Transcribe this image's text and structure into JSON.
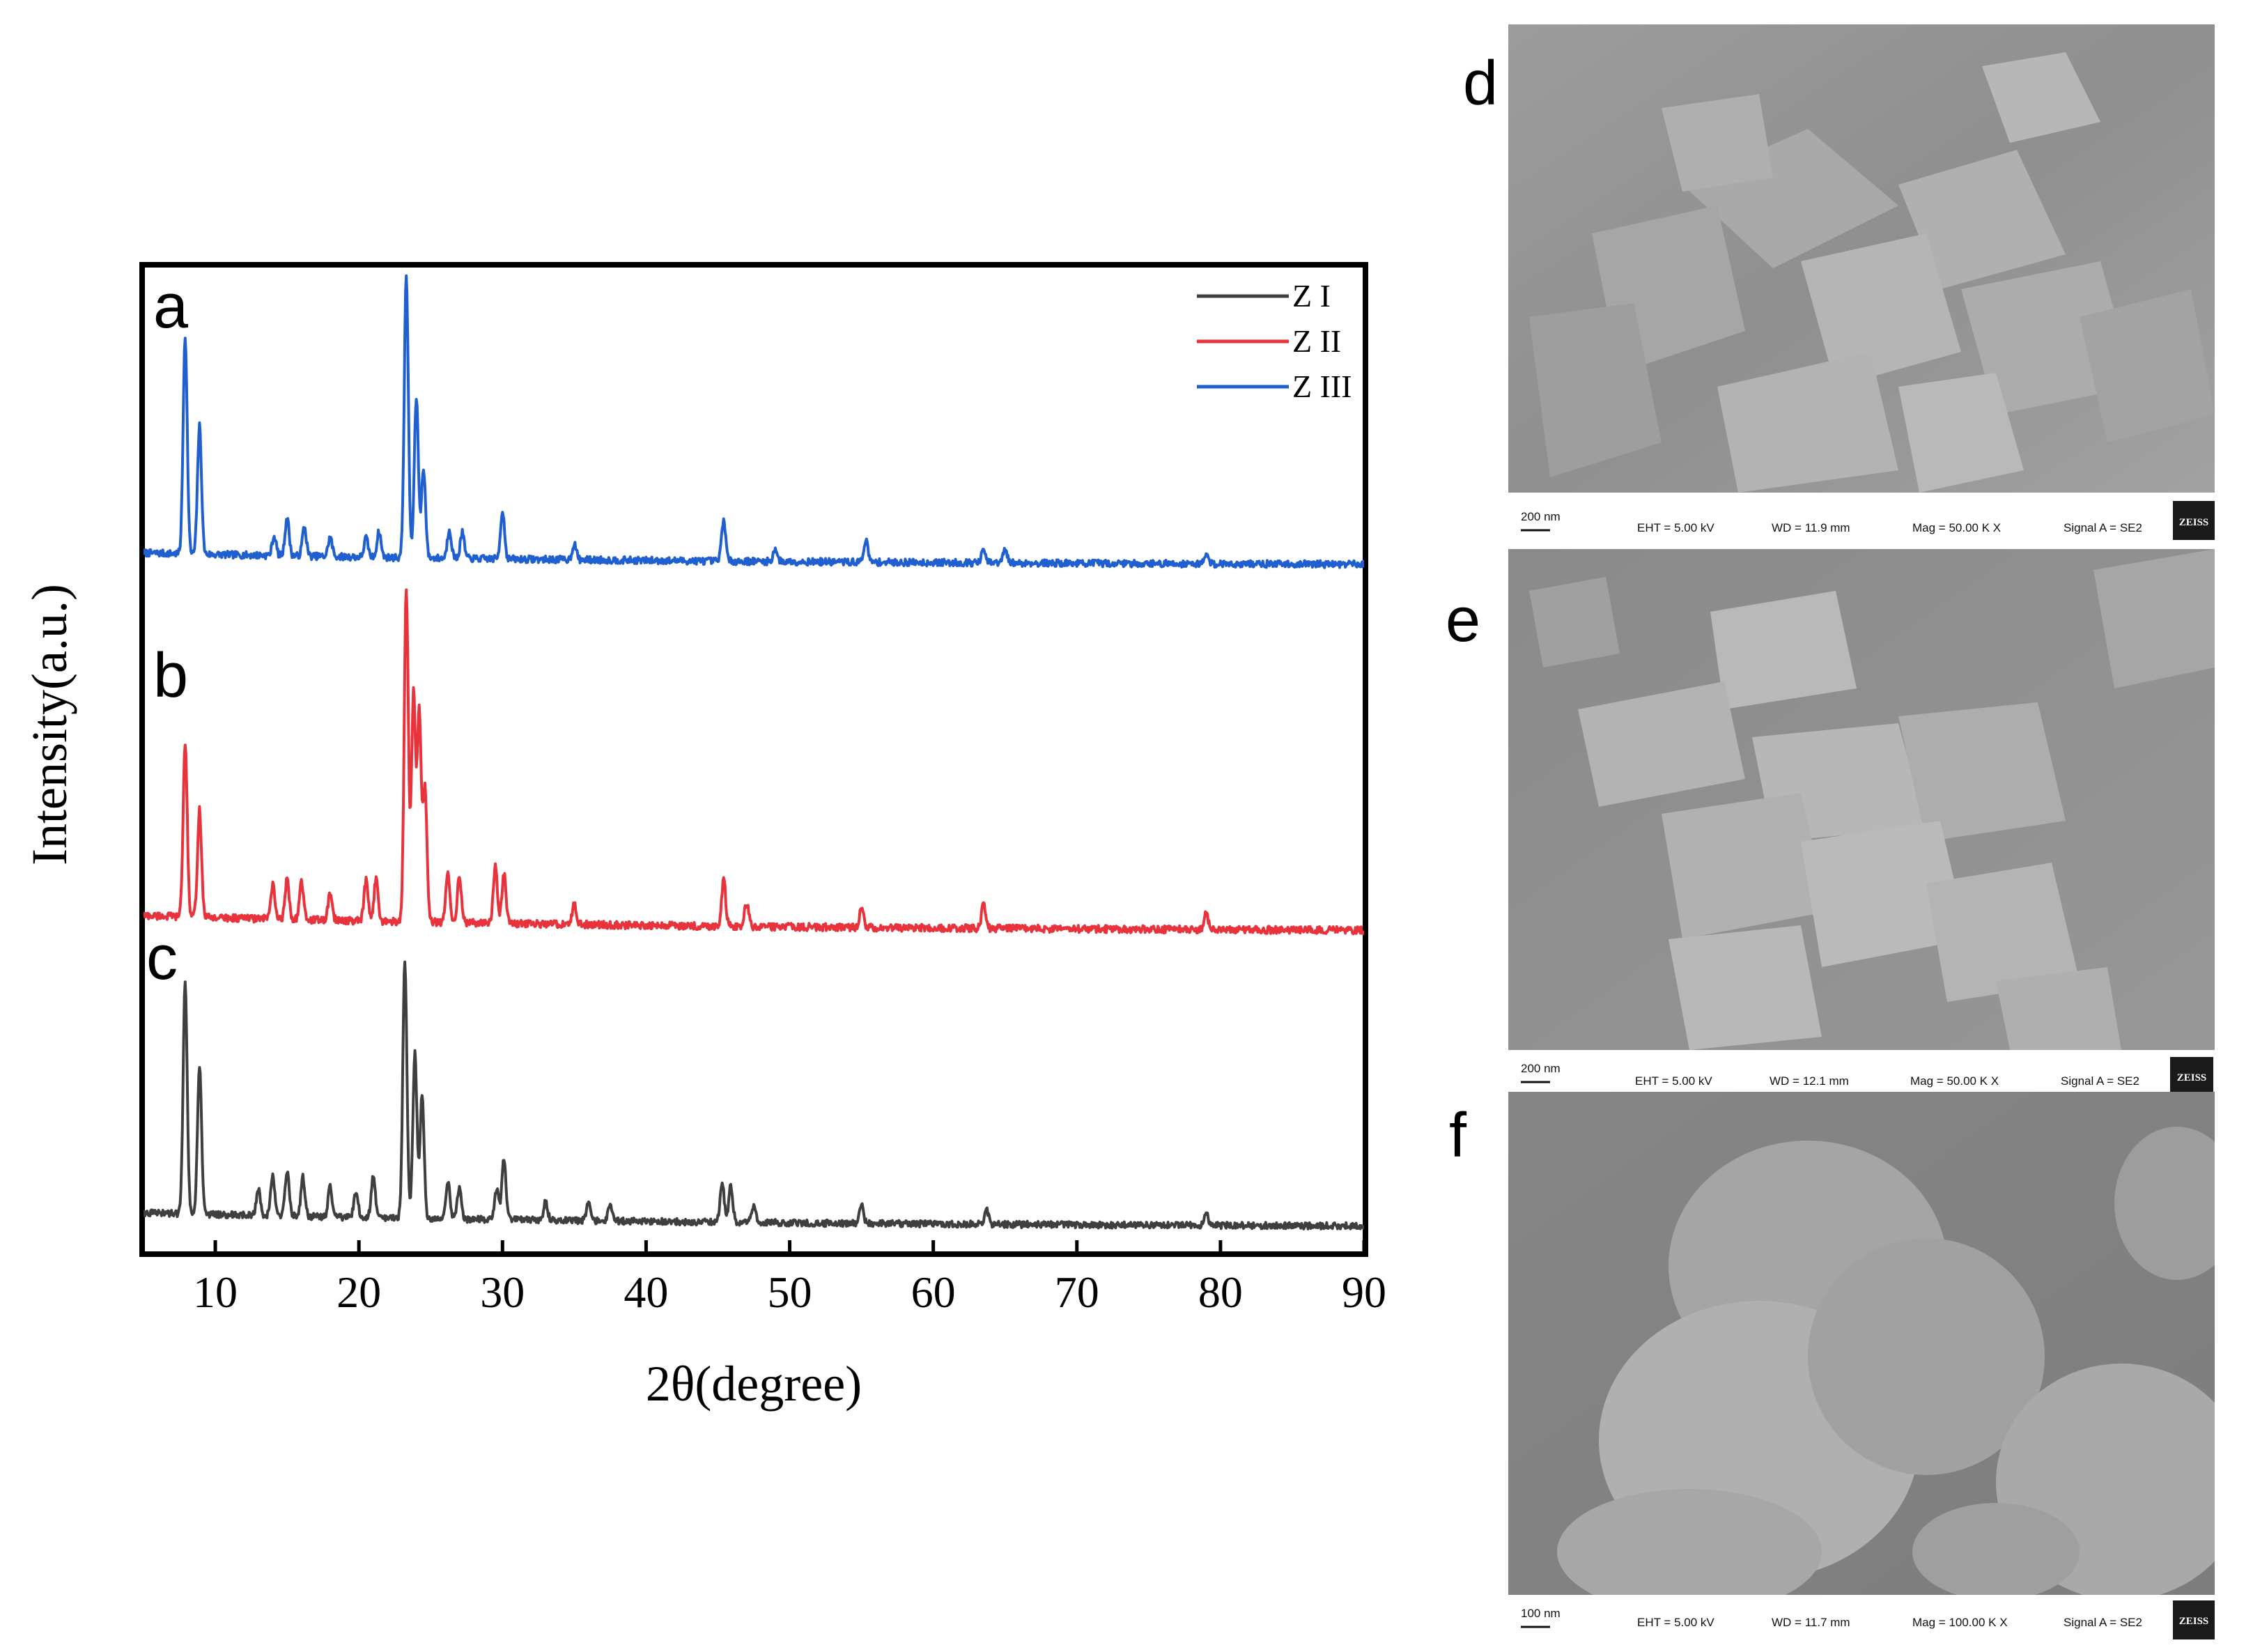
{
  "chart_data": {
    "type": "line",
    "xlabel": "2θ(degree)",
    "ylabel": "Intensity(a.u.)",
    "xlim": [
      5,
      90
    ],
    "x_ticks": [
      "10",
      "20",
      "30",
      "40",
      "50",
      "60",
      "70",
      "80",
      "90"
    ],
    "grid": false,
    "legend_position": "top-right",
    "panel_labels": [
      "a",
      "b",
      "c"
    ],
    "series": [
      {
        "name": "Z III",
        "panel": "a",
        "color": "#1f5fcf",
        "baseline": 0.04,
        "peaks": [
          [
            7.9,
            0.68
          ],
          [
            8.9,
            0.4
          ],
          [
            14.1,
            0.06
          ],
          [
            15.0,
            0.12
          ],
          [
            16.2,
            0.09
          ],
          [
            18.0,
            0.06
          ],
          [
            20.5,
            0.06
          ],
          [
            21.4,
            0.08
          ],
          [
            23.3,
            0.88
          ],
          [
            24.0,
            0.5
          ],
          [
            24.5,
            0.28
          ],
          [
            26.3,
            0.09
          ],
          [
            27.2,
            0.08
          ],
          [
            30.0,
            0.15
          ],
          [
            35.0,
            0.05
          ],
          [
            45.4,
            0.13
          ],
          [
            49.0,
            0.04
          ],
          [
            55.3,
            0.07
          ],
          [
            63.5,
            0.04
          ],
          [
            65.0,
            0.04
          ],
          [
            79.0,
            0.03
          ]
        ]
      },
      {
        "name": "Z II",
        "panel": "b",
        "color": "#e8323c",
        "baseline": 0.05,
        "peaks": [
          [
            7.9,
            0.52
          ],
          [
            8.9,
            0.32
          ],
          [
            14.0,
            0.1
          ],
          [
            15.0,
            0.12
          ],
          [
            16.0,
            0.11
          ],
          [
            18.0,
            0.08
          ],
          [
            20.5,
            0.12
          ],
          [
            21.2,
            0.13
          ],
          [
            23.3,
            1.0
          ],
          [
            23.8,
            0.68
          ],
          [
            24.2,
            0.62
          ],
          [
            24.6,
            0.4
          ],
          [
            26.2,
            0.15
          ],
          [
            27.0,
            0.14
          ],
          [
            29.5,
            0.17
          ],
          [
            30.1,
            0.15
          ],
          [
            35.0,
            0.06
          ],
          [
            45.4,
            0.14
          ],
          [
            47.0,
            0.07
          ],
          [
            55.0,
            0.06
          ],
          [
            63.5,
            0.07
          ],
          [
            79.0,
            0.05
          ]
        ]
      },
      {
        "name": "Z I",
        "panel": "c",
        "color": "#3f3f3f",
        "baseline": 0.05,
        "peaks": [
          [
            7.9,
            0.78
          ],
          [
            8.9,
            0.5
          ],
          [
            13.0,
            0.09
          ],
          [
            14.0,
            0.13
          ],
          [
            15.0,
            0.15
          ],
          [
            16.1,
            0.13
          ],
          [
            18.0,
            0.1
          ],
          [
            19.8,
            0.09
          ],
          [
            21.0,
            0.14
          ],
          [
            23.2,
            0.86
          ],
          [
            23.9,
            0.55
          ],
          [
            24.4,
            0.42
          ],
          [
            26.2,
            0.13
          ],
          [
            27.0,
            0.11
          ],
          [
            29.6,
            0.1
          ],
          [
            30.1,
            0.2
          ],
          [
            33.0,
            0.06
          ],
          [
            36.0,
            0.06
          ],
          [
            37.5,
            0.05
          ],
          [
            45.3,
            0.13
          ],
          [
            45.9,
            0.12
          ],
          [
            47.5,
            0.06
          ],
          [
            55.0,
            0.06
          ],
          [
            63.7,
            0.05
          ],
          [
            79.0,
            0.04
          ]
        ]
      }
    ]
  },
  "sem_panels": [
    {
      "label": "d",
      "scale_text": "200 nm",
      "eht": "EHT =  5.00 kV",
      "wd": "WD = 11.9 mm",
      "mag": "Mag =  50.00 K X",
      "signal": "Signal A = SE2",
      "logo": "ZEISS",
      "texture": "cubic-crystals"
    },
    {
      "label": "e",
      "scale_text": "200 nm",
      "eht": "EHT =  5.00 kV",
      "wd": "WD = 12.1 mm",
      "mag": "Mag =  50.00 K X",
      "signal": "Signal A = SE2",
      "logo": "ZEISS",
      "texture": "rectangular-blocks"
    },
    {
      "label": "f",
      "scale_text": "100 nm",
      "eht": "EHT =  5.00 kV",
      "wd": "WD = 11.7 mm",
      "mag": "Mag = 100.00 K X",
      "signal": "Signal A = SE2",
      "logo": "ZEISS",
      "texture": "rough-aggregates"
    }
  ]
}
